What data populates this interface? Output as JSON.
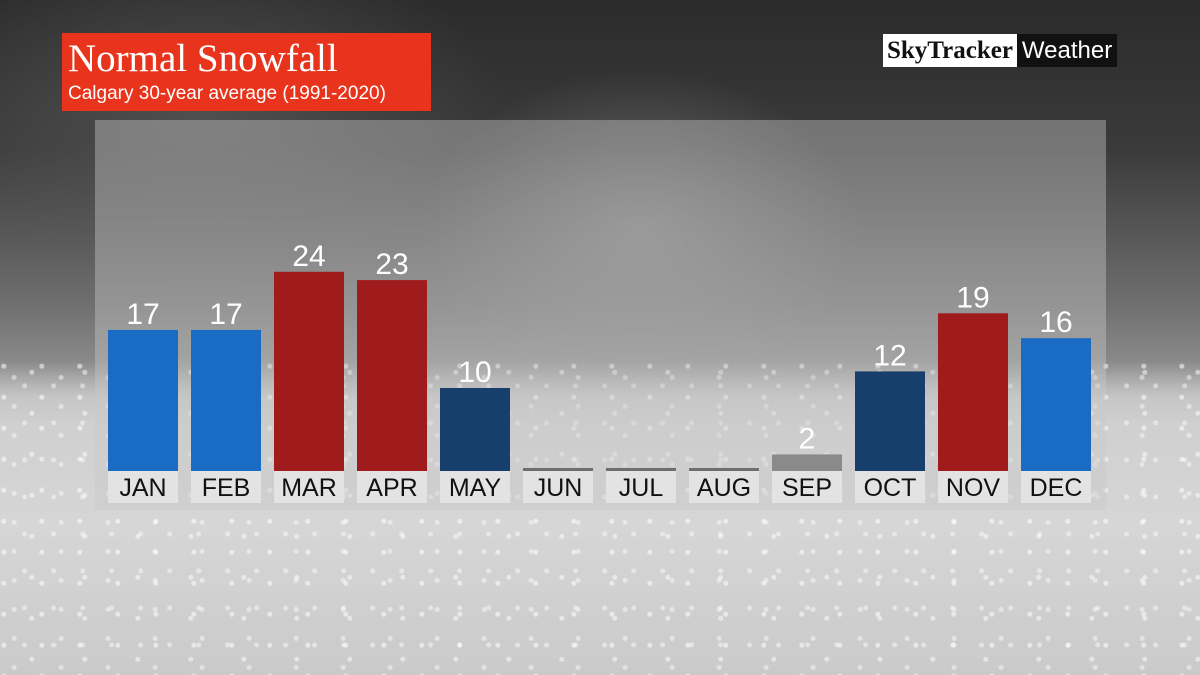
{
  "header": {
    "title": "Normal Snowfall",
    "subtitle": "Calgary 30-year average (1991-2020)"
  },
  "brand": {
    "name_part1": "SkyTracker",
    "name_part2": "Weather"
  },
  "chart_data": {
    "type": "bar",
    "title": "Normal Snowfall",
    "subtitle": "Calgary 30-year average (1991-2020)",
    "categories": [
      "JAN",
      "FEB",
      "MAR",
      "APR",
      "MAY",
      "JUN",
      "JUL",
      "AUG",
      "SEP",
      "OCT",
      "NOV",
      "DEC"
    ],
    "values": [
      17,
      17,
      24,
      23,
      10,
      0,
      0,
      0,
      2,
      12,
      19,
      16
    ],
    "labels": [
      "17",
      "17",
      "24",
      "23",
      "10",
      "",
      "",
      "",
      "2",
      "12",
      "19",
      "16"
    ],
    "bar_colors": [
      "#1a6bc4",
      "#1a6bc4",
      "#a01b1b",
      "#a01b1b",
      "#173f6b",
      "#6e6e6e",
      "#6e6e6e",
      "#6e6e6e",
      "#8a8a8a",
      "#173f6b",
      "#a01b1b",
      "#1a6bc4"
    ],
    "ylim": [
      0,
      24
    ],
    "grid": false,
    "legend": "none"
  }
}
